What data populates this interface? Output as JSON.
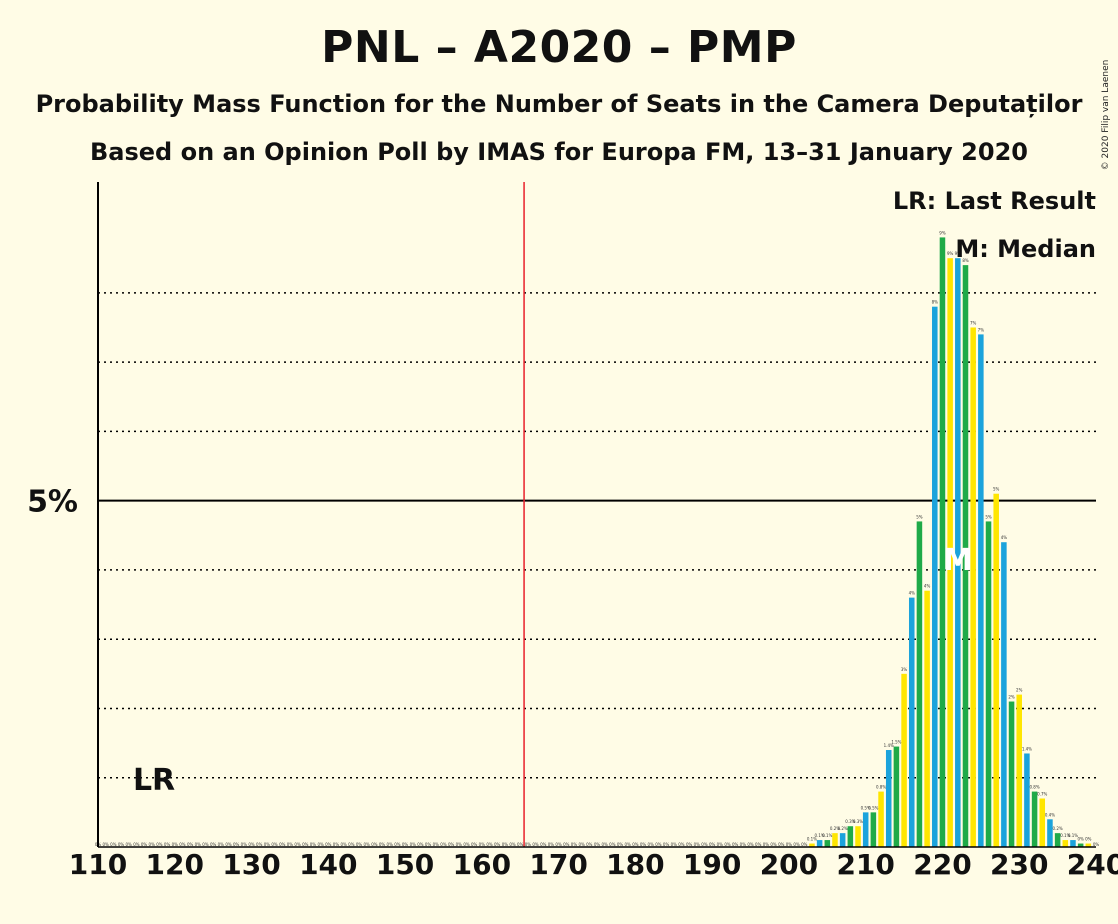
{
  "colors": {
    "background": "#FFFCE6",
    "blue": "#1BA3DC",
    "green": "#1FAA48",
    "yellow": "#FFE600",
    "threshold": "#E8202A",
    "median": "#FFFFFF"
  },
  "title": "PNL – A2020 – PMP",
  "subtitle1": "Probability Mass Function for the Number of Seats in the Camera Deputaților",
  "subtitle2": "Based on an Opinion Poll by IMAS for Europa FM, 13–31 January 2020",
  "copyright": "© 2020 Filip van Laenen",
  "legend": {
    "last_result": "LR: Last Result",
    "median": "M: Median"
  },
  "chart_data": {
    "type": "bar",
    "x_range": [
      110,
      240
    ],
    "x_ticks": [
      "110",
      "120",
      "130",
      "140",
      "150",
      "160",
      "170",
      "180",
      "190",
      "200",
      "210",
      "220",
      "230",
      "240"
    ],
    "y_range_percent": [
      0,
      9.6
    ],
    "y_tick_labels": [
      {
        "value": 5,
        "label": "5%"
      }
    ],
    "dotted_gridlines_percent": [
      1,
      2,
      3,
      4,
      6,
      7,
      8
    ],
    "color_cycle": [
      "blue",
      "green",
      "yellow"
    ],
    "majority_threshold_seat": 166,
    "last_result_seat": 116,
    "last_result_label": "LR",
    "median_seat": 222,
    "median_label": "M",
    "seats": [
      203,
      204,
      205,
      206,
      207,
      208,
      209,
      210,
      211,
      212,
      213,
      214,
      215,
      216,
      217,
      218,
      219,
      220,
      221,
      222,
      223,
      224,
      225,
      226,
      227,
      228,
      229,
      230,
      231,
      232,
      233,
      234,
      235,
      236,
      237,
      238,
      239
    ],
    "probabilities_percent": [
      0.05,
      0.1,
      0.1,
      0.2,
      0.2,
      0.3,
      0.3,
      0.5,
      0.5,
      0.8,
      1.4,
      1.45,
      2.5,
      3.6,
      4.7,
      3.7,
      7.8,
      8.8,
      8.5,
      8.5,
      8.4,
      7.5,
      7.4,
      4.7,
      5.1,
      4.4,
      2.1,
      2.2,
      1.35,
      0.8,
      0.7,
      0.4,
      0.2,
      0.1,
      0.1,
      0.05,
      0.05
    ],
    "bar_labels": [
      "0.1%",
      "0.1%",
      "0.1%",
      "0.2%",
      "0.2%",
      "0.3%",
      "0.3%",
      "0.5%",
      "0.5%",
      "0.8%",
      "1.4%",
      "1.5%",
      "3%",
      "4%",
      "5%",
      "4%",
      "8%",
      "9%",
      "9%",
      "9%",
      "8%",
      "7%",
      "7%",
      "5%",
      "5%",
      "4%",
      "2%",
      "2%",
      "1.4%",
      "0.8%",
      "0.7%",
      "0.4%",
      "0.2%",
      "0.1%",
      "0.1%",
      "0%",
      "0%"
    ],
    "zero_label": "0%"
  }
}
